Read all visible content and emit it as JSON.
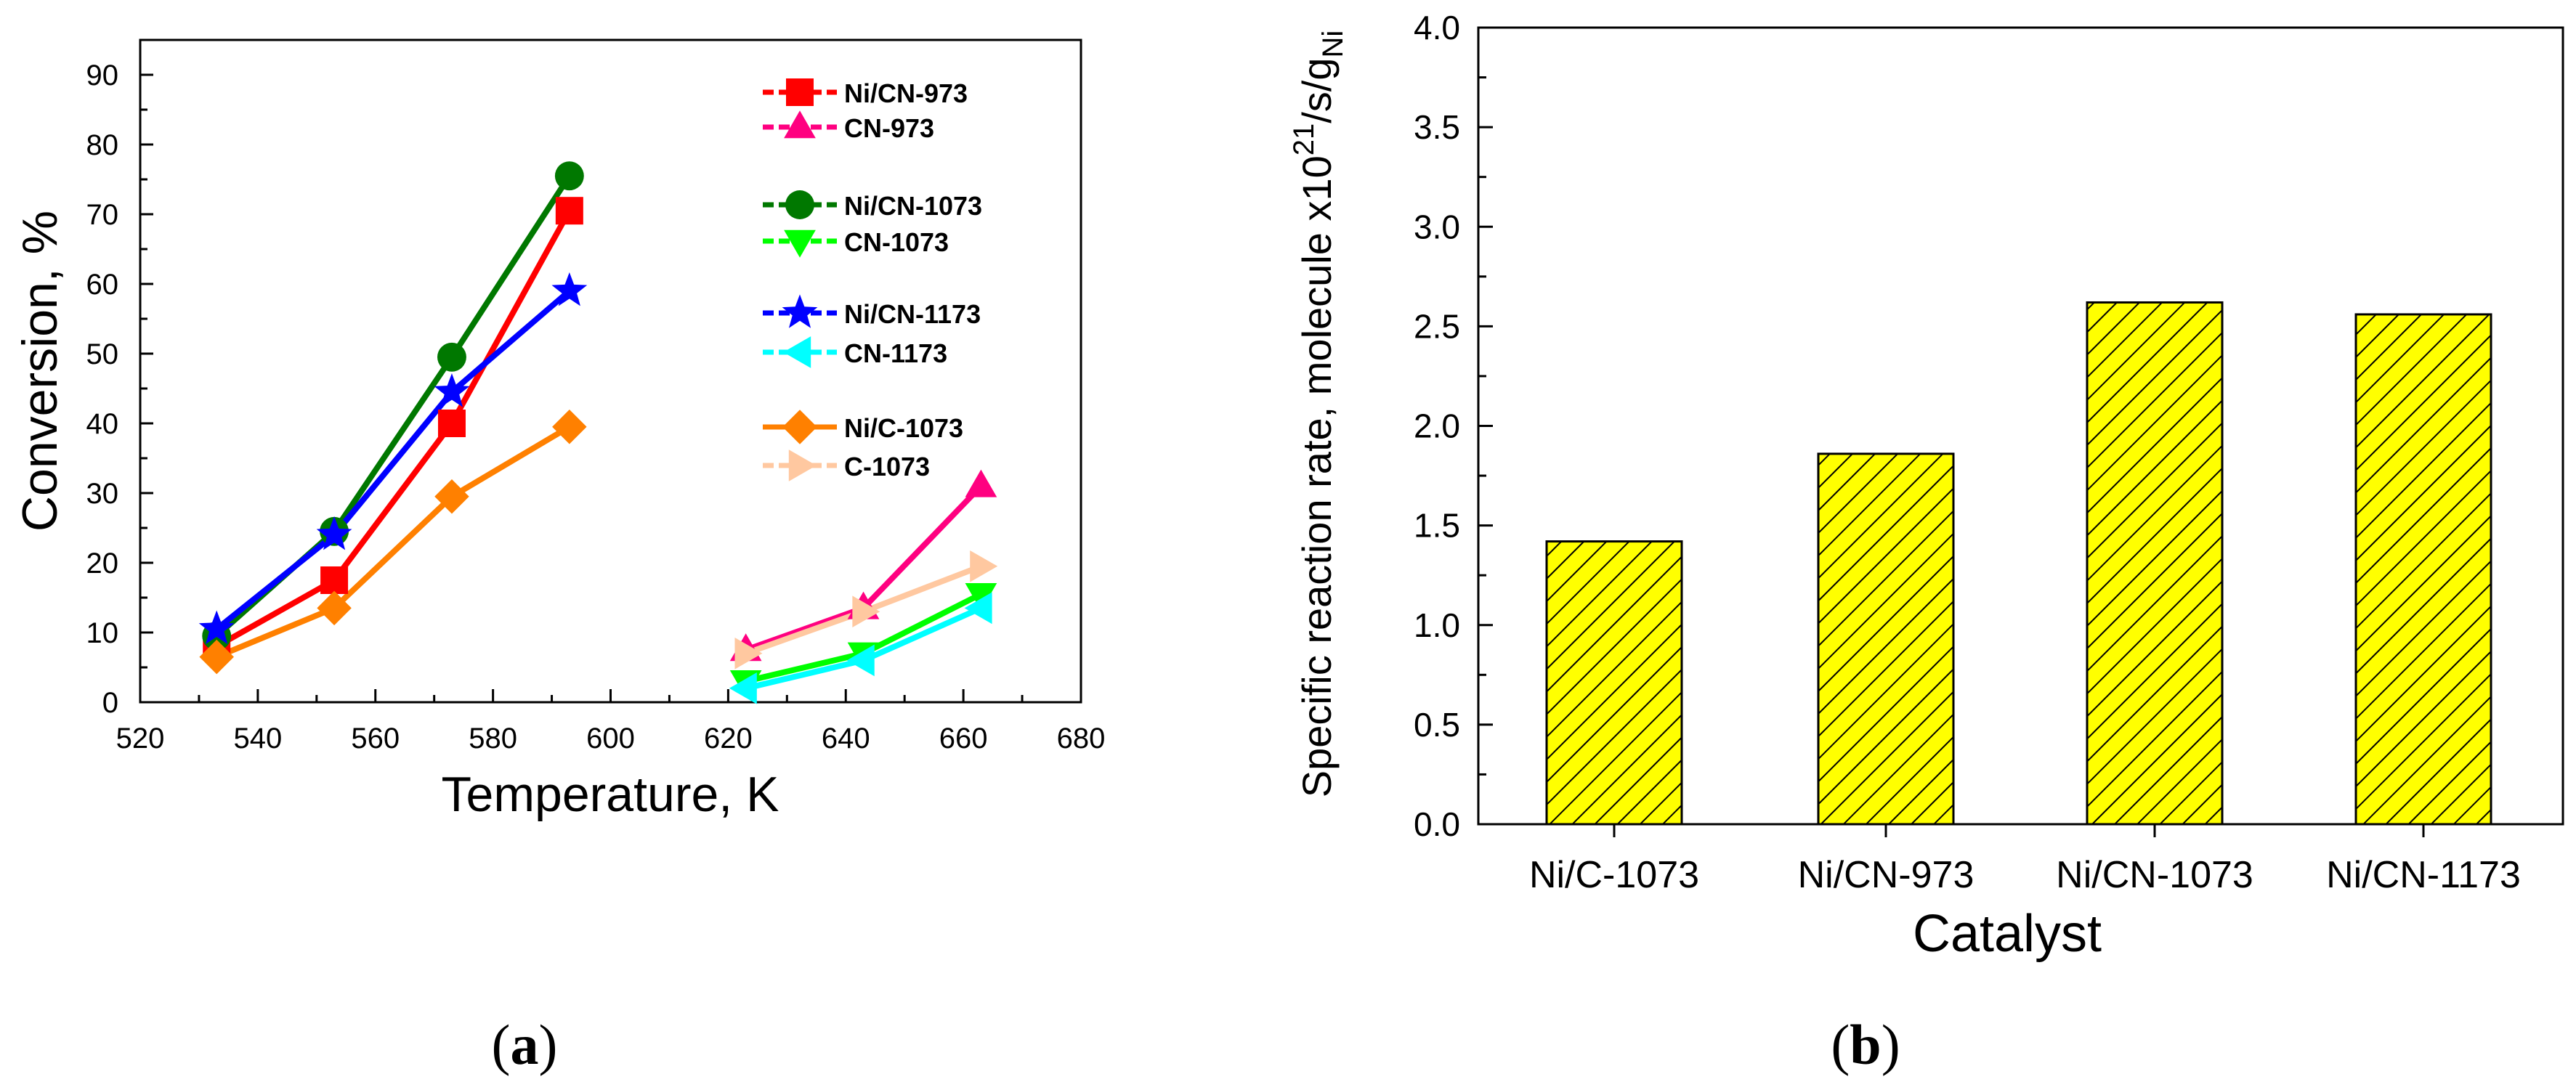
{
  "chart_data": [
    {
      "type": "line",
      "panel_label": "a",
      "xlabel": "Temperature, K",
      "ylabel": "Conversion, %",
      "xlim": [
        520,
        680
      ],
      "ylim": [
        0,
        95
      ],
      "xticks": [
        "520",
        "540",
        "560",
        "580",
        "600",
        "620",
        "640",
        "660",
        "680"
      ],
      "yticks": [
        "0",
        "10",
        "20",
        "30",
        "40",
        "50",
        "60",
        "70",
        "80",
        "90"
      ],
      "legend_position": "top-right",
      "series": [
        {
          "name": "Ni/CN-973",
          "marker": "square",
          "color": "#ff0000",
          "line": "solid",
          "legend_style": "dashed",
          "x": [
            533,
            553,
            573,
            593
          ],
          "y": [
            8,
            17.5,
            40,
            70.5
          ]
        },
        {
          "name": "CN-973",
          "marker": "triangle-up",
          "color": "#ff0080",
          "line": "solid",
          "legend_style": "dashed",
          "x": [
            623,
            643,
            663
          ],
          "y": [
            7.5,
            13.5,
            31
          ]
        },
        {
          "name": "Ni/CN-1073",
          "marker": "circle",
          "color": "#007800",
          "line": "solid",
          "legend_style": "dashed",
          "x": [
            533,
            553,
            573,
            593
          ],
          "y": [
            9.5,
            24.5,
            49.5,
            75.5
          ]
        },
        {
          "name": "CN-1073",
          "marker": "triangle-down",
          "color": "#00ff00",
          "line": "solid",
          "legend_style": "dashed",
          "x": [
            623,
            643,
            663
          ],
          "y": [
            3,
            7,
            15.5
          ]
        },
        {
          "name": "Ni/CN-1173",
          "marker": "star",
          "color": "#0000ff",
          "line": "solid",
          "legend_style": "dashed",
          "x": [
            533,
            553,
            573,
            593
          ],
          "y": [
            10.5,
            24,
            44.5,
            59
          ]
        },
        {
          "name": "CN-1173",
          "marker": "triangle-left",
          "color": "#00ffff",
          "line": "solid",
          "legend_style": "dashed",
          "x": [
            623,
            643,
            663
          ],
          "y": [
            2,
            6,
            13.5
          ]
        },
        {
          "name": "Ni/C-1073",
          "marker": "diamond",
          "color": "#ff8000",
          "line": "solid",
          "legend_style": "solid",
          "x": [
            533,
            553,
            573,
            593
          ],
          "y": [
            6.5,
            13.5,
            29.5,
            39.5
          ]
        },
        {
          "name": "C-1073",
          "marker": "triangle-right",
          "color": "#ffc8a0",
          "line": "solid",
          "legend_style": "dashed",
          "x": [
            623,
            643,
            663
          ],
          "y": [
            7,
            13,
            19.5
          ]
        }
      ]
    },
    {
      "type": "bar",
      "panel_label": "b",
      "xlabel": "Catalyst",
      "ylabel": "Specific reaction rate, molecule x10",
      "ylabel_sup": "21",
      "ylabel_tail": "/s/g",
      "ylabel_sub": "Ni",
      "ylim": [
        0,
        4.0
      ],
      "yticks": [
        "0.0",
        "0.5",
        "1.0",
        "1.5",
        "2.0",
        "2.5",
        "3.0",
        "3.5",
        "4.0"
      ],
      "categories": [
        "Ni/C-1073",
        "Ni/CN-973",
        "Ni/CN-1073",
        "Ni/CN-1173"
      ],
      "values": [
        1.42,
        1.86,
        2.62,
        2.56
      ],
      "bar_color": "#ffff00",
      "hatch_color": "#000000"
    }
  ]
}
